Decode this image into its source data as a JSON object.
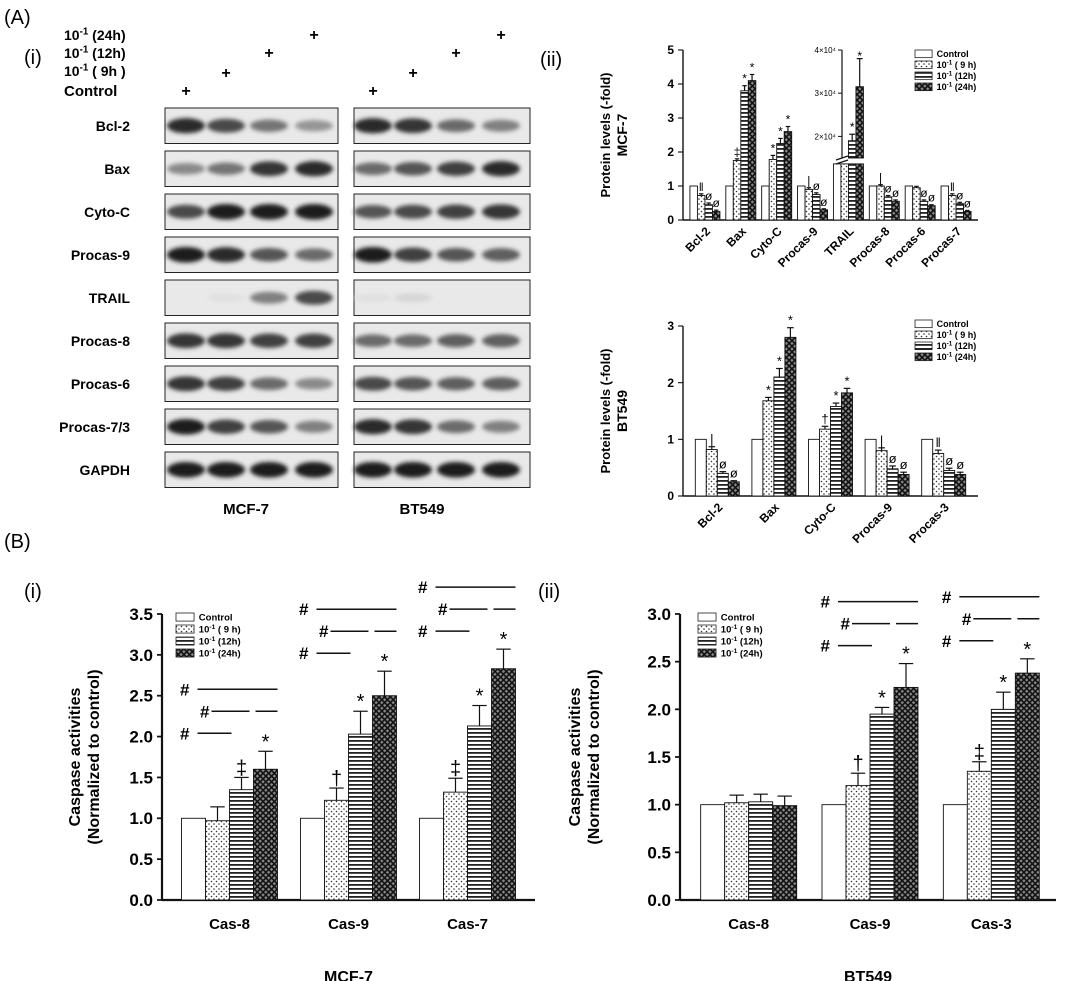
{
  "panel_labels": {
    "A": "(A)",
    "B": "(B)",
    "Ai": "(i)",
    "Aii": "(ii)",
    "Bi": "(i)",
    "Bii": "(ii)"
  },
  "blot": {
    "treatments": [
      "10",
      "10",
      "10",
      "Control"
    ],
    "treatment_full": [
      "10-1 (24h)",
      "10-1 (12h)",
      "10-1 ( 9h )",
      "Control"
    ],
    "treatment_time": [
      "(24h)",
      "(12h)",
      "( 9h )",
      ""
    ],
    "exponent": "-1",
    "plus": "+",
    "proteins": [
      "Bcl-2",
      "Bax",
      "Cyto-C",
      "Procas-9",
      "TRAIL",
      "Procas-8",
      "Procas-6",
      "Procas-7/3",
      "GAPDH"
    ],
    "cell_lines": [
      "MCF-7",
      "BT549"
    ],
    "band_intensity": {
      "MCF-7": [
        [
          0.9,
          0.75,
          0.55,
          0.4
        ],
        [
          0.45,
          0.55,
          0.85,
          0.9
        ],
        [
          0.75,
          0.95,
          0.95,
          0.95
        ],
        [
          0.95,
          0.9,
          0.7,
          0.6
        ],
        [
          0.0,
          0.05,
          0.5,
          0.75
        ],
        [
          0.85,
          0.85,
          0.8,
          0.8
        ],
        [
          0.85,
          0.8,
          0.6,
          0.45
        ],
        [
          0.95,
          0.8,
          0.7,
          0.5
        ],
        [
          0.95,
          0.95,
          0.95,
          0.95
        ]
      ],
      "BT549": [
        [
          0.9,
          0.85,
          0.6,
          0.5
        ],
        [
          0.6,
          0.7,
          0.8,
          0.9
        ],
        [
          0.7,
          0.75,
          0.8,
          0.85
        ],
        [
          0.95,
          0.8,
          0.7,
          0.65
        ],
        [
          0.05,
          0.1,
          0.0,
          0.0
        ],
        [
          0.6,
          0.6,
          0.65,
          0.65
        ],
        [
          0.75,
          0.7,
          0.65,
          0.65
        ],
        [
          0.9,
          0.85,
          0.6,
          0.5
        ],
        [
          0.95,
          0.95,
          0.95,
          0.95
        ]
      ]
    }
  },
  "legend": {
    "entries": [
      "Control",
      "10-1 ( 9 h)",
      "10-1 (12h)",
      "10-1 (24h)"
    ],
    "base": "10",
    "exponent": "-1",
    "times": [
      "",
      "( 9 h)",
      "(12h)",
      "(24h)"
    ]
  },
  "chart_data": [
    {
      "id": "A-ii-MCF7",
      "type": "bar",
      "ylabel": "Protein levels (-fold)",
      "side_label": "MCF-7",
      "ylim": [
        0,
        5
      ],
      "yticks": [
        "0",
        "1",
        "2",
        "3",
        "4",
        "5"
      ],
      "categories": [
        "Bcl-2",
        "Bax",
        "Cyto-C",
        "Procas-9",
        "TRAIL",
        "Procas-8",
        "Procas-6",
        "Procas-7"
      ],
      "series": [
        {
          "values": [
            1.0,
            1.0,
            1.0,
            1.0,
            1.65,
            1.0,
            1.0,
            1.0
          ]
        },
        {
          "values": [
            0.72,
            1.75,
            1.78,
            0.9,
            1.65,
            1.0,
            0.95,
            0.72
          ]
        },
        {
          "values": [
            0.45,
            3.8,
            2.25,
            0.75,
            1.65,
            0.68,
            0.55,
            0.48
          ]
        },
        {
          "values": [
            0.25,
            4.1,
            2.6,
            0.3,
            1.65,
            0.55,
            0.42,
            0.25
          ]
        }
      ],
      "errors": [
        [
          0.0,
          0.0,
          0.0,
          0.0,
          0.0,
          0.0,
          0.0,
          0.0
        ],
        [
          0.05,
          0.05,
          0.12,
          0.05,
          0.0,
          0.04,
          0.04,
          0.05
        ],
        [
          0.05,
          0.15,
          0.15,
          0.05,
          0.0,
          0.04,
          0.04,
          0.04
        ],
        [
          0.04,
          0.18,
          0.15,
          0.03,
          0.0,
          0.04,
          0.03,
          0.03
        ]
      ],
      "marks": [
        {
          "cat": 0,
          "ser": 1,
          "text": "‖"
        },
        {
          "cat": 0,
          "ser": 2,
          "text": "ø"
        },
        {
          "cat": 0,
          "ser": 3,
          "text": "ø"
        },
        {
          "cat": 1,
          "ser": 1,
          "text": "‡"
        },
        {
          "cat": 1,
          "ser": 2,
          "text": "*"
        },
        {
          "cat": 1,
          "ser": 3,
          "text": "*"
        },
        {
          "cat": 2,
          "ser": 1,
          "text": "*"
        },
        {
          "cat": 2,
          "ser": 2,
          "text": "*"
        },
        {
          "cat": 2,
          "ser": 3,
          "text": "*"
        },
        {
          "cat": 3,
          "ser": 1,
          "text": "|"
        },
        {
          "cat": 3,
          "ser": 2,
          "text": "ø"
        },
        {
          "cat": 3,
          "ser": 3,
          "text": "ø"
        },
        {
          "cat": 5,
          "ser": 1,
          "text": "|"
        },
        {
          "cat": 5,
          "ser": 2,
          "text": "ø"
        },
        {
          "cat": 5,
          "ser": 3,
          "text": "ø"
        },
        {
          "cat": 6,
          "ser": 2,
          "text": "ø"
        },
        {
          "cat": 6,
          "ser": 3,
          "text": "ø"
        },
        {
          "cat": 7,
          "ser": 1,
          "text": "‖"
        },
        {
          "cat": 7,
          "ser": 2,
          "text": "ø"
        },
        {
          "cat": 7,
          "ser": 3,
          "text": "ø"
        }
      ],
      "inset": {
        "category": "TRAIL",
        "yticks": [
          "2×10⁴",
          "3×10⁴",
          "4×10⁴"
        ],
        "ylim": [
          15000,
          40000
        ],
        "values": [
          null,
          0,
          19000,
          31500
        ],
        "errors": [
          0,
          0,
          1500,
          6500
        ],
        "marks": [
          {
            "ser": 2,
            "text": "*"
          },
          {
            "ser": 3,
            "text": "*"
          }
        ]
      }
    },
    {
      "id": "A-ii-BT549",
      "type": "bar",
      "ylabel": "Protein levels (-fold)",
      "side_label": "BT549",
      "ylim": [
        0,
        3
      ],
      "yticks": [
        "0",
        "1",
        "2",
        "3"
      ],
      "categories": [
        "Bcl-2",
        "Bax",
        "Cyto-C",
        "Procas-9",
        "Procas-3"
      ],
      "series": [
        {
          "values": [
            1.0,
            1.0,
            1.0,
            1.0,
            1.0
          ]
        },
        {
          "values": [
            0.82,
            1.68,
            1.18,
            0.8,
            0.75
          ]
        },
        {
          "values": [
            0.4,
            2.1,
            1.58,
            0.48,
            0.45
          ]
        },
        {
          "values": [
            0.25,
            2.8,
            1.82,
            0.38,
            0.38
          ]
        }
      ],
      "errors": [
        [
          0.0,
          0.0,
          0.0,
          0.0,
          0.0
        ],
        [
          0.05,
          0.06,
          0.05,
          0.05,
          0.06
        ],
        [
          0.03,
          0.15,
          0.06,
          0.05,
          0.04
        ],
        [
          0.02,
          0.17,
          0.08,
          0.04,
          0.04
        ]
      ],
      "marks": [
        {
          "cat": 0,
          "ser": 1,
          "text": "|"
        },
        {
          "cat": 0,
          "ser": 2,
          "text": "ø"
        },
        {
          "cat": 0,
          "ser": 3,
          "text": "ø"
        },
        {
          "cat": 1,
          "ser": 1,
          "text": "*"
        },
        {
          "cat": 1,
          "ser": 2,
          "text": "*"
        },
        {
          "cat": 1,
          "ser": 3,
          "text": "*"
        },
        {
          "cat": 2,
          "ser": 1,
          "text": "†"
        },
        {
          "cat": 2,
          "ser": 2,
          "text": "*"
        },
        {
          "cat": 2,
          "ser": 3,
          "text": "*"
        },
        {
          "cat": 3,
          "ser": 1,
          "text": "|"
        },
        {
          "cat": 3,
          "ser": 2,
          "text": "ø"
        },
        {
          "cat": 3,
          "ser": 3,
          "text": "ø"
        },
        {
          "cat": 4,
          "ser": 1,
          "text": "‖"
        },
        {
          "cat": 4,
          "ser": 2,
          "text": "ø"
        },
        {
          "cat": 4,
          "ser": 3,
          "text": "ø"
        }
      ]
    },
    {
      "id": "B-i-MCF7",
      "type": "bar",
      "ylabel": "Caspase activities",
      "ylabel2": "(Normalized to control)",
      "xlabel": "MCF-7",
      "ylim": [
        0,
        3.5
      ],
      "yticks": [
        "0.0",
        "0.5",
        "1.0",
        "1.5",
        "2.0",
        "2.5",
        "3.0",
        "3.5"
      ],
      "categories": [
        "Cas-8",
        "Cas-9",
        "Cas-7"
      ],
      "series": [
        {
          "values": [
            1.0,
            1.0,
            1.0
          ]
        },
        {
          "values": [
            0.97,
            1.22,
            1.32
          ]
        },
        {
          "values": [
            1.35,
            2.03,
            2.13
          ]
        },
        {
          "values": [
            1.6,
            2.5,
            2.83
          ]
        }
      ],
      "errors": [
        [
          0,
          0,
          0
        ],
        [
          0.17,
          0.15,
          0.17
        ],
        [
          0.15,
          0.28,
          0.25
        ],
        [
          0.22,
          0.3,
          0.24
        ]
      ],
      "marks": [
        {
          "cat": 0,
          "ser": 2,
          "text": "‡"
        },
        {
          "cat": 0,
          "ser": 3,
          "text": "*"
        },
        {
          "cat": 1,
          "ser": 1,
          "text": "†"
        },
        {
          "cat": 1,
          "ser": 2,
          "text": "*"
        },
        {
          "cat": 1,
          "ser": 3,
          "text": "*"
        },
        {
          "cat": 2,
          "ser": 1,
          "text": "‡"
        },
        {
          "cat": 2,
          "ser": 2,
          "text": "*"
        },
        {
          "cat": 2,
          "ser": 3,
          "text": "*"
        }
      ],
      "hash": "#"
    },
    {
      "id": "B-ii-BT549",
      "type": "bar",
      "ylabel": "Caspase activities",
      "ylabel2": "(Normalized to control)",
      "xlabel": "BT549",
      "ylim": [
        0,
        3.0
      ],
      "yticks": [
        "0.0",
        "0.5",
        "1.0",
        "1.5",
        "2.0",
        "2.5",
        "3.0"
      ],
      "categories": [
        "Cas-8",
        "Cas-9",
        "Cas-3"
      ],
      "series": [
        {
          "values": [
            1.0,
            1.0,
            1.0
          ]
        },
        {
          "values": [
            1.02,
            1.2,
            1.35
          ]
        },
        {
          "values": [
            1.03,
            1.95,
            2.0
          ]
        },
        {
          "values": [
            0.99,
            2.23,
            2.38
          ]
        }
      ],
      "errors": [
        [
          0,
          0,
          0
        ],
        [
          0.08,
          0.13,
          0.1
        ],
        [
          0.08,
          0.07,
          0.18
        ],
        [
          0.1,
          0.25,
          0.15
        ]
      ],
      "marks": [
        {
          "cat": 1,
          "ser": 1,
          "text": "†"
        },
        {
          "cat": 1,
          "ser": 2,
          "text": "*"
        },
        {
          "cat": 1,
          "ser": 3,
          "text": "*"
        },
        {
          "cat": 2,
          "ser": 1,
          "text": "‡"
        },
        {
          "cat": 2,
          "ser": 2,
          "text": "*"
        },
        {
          "cat": 2,
          "ser": 3,
          "text": "*"
        }
      ],
      "hash": "#"
    }
  ]
}
